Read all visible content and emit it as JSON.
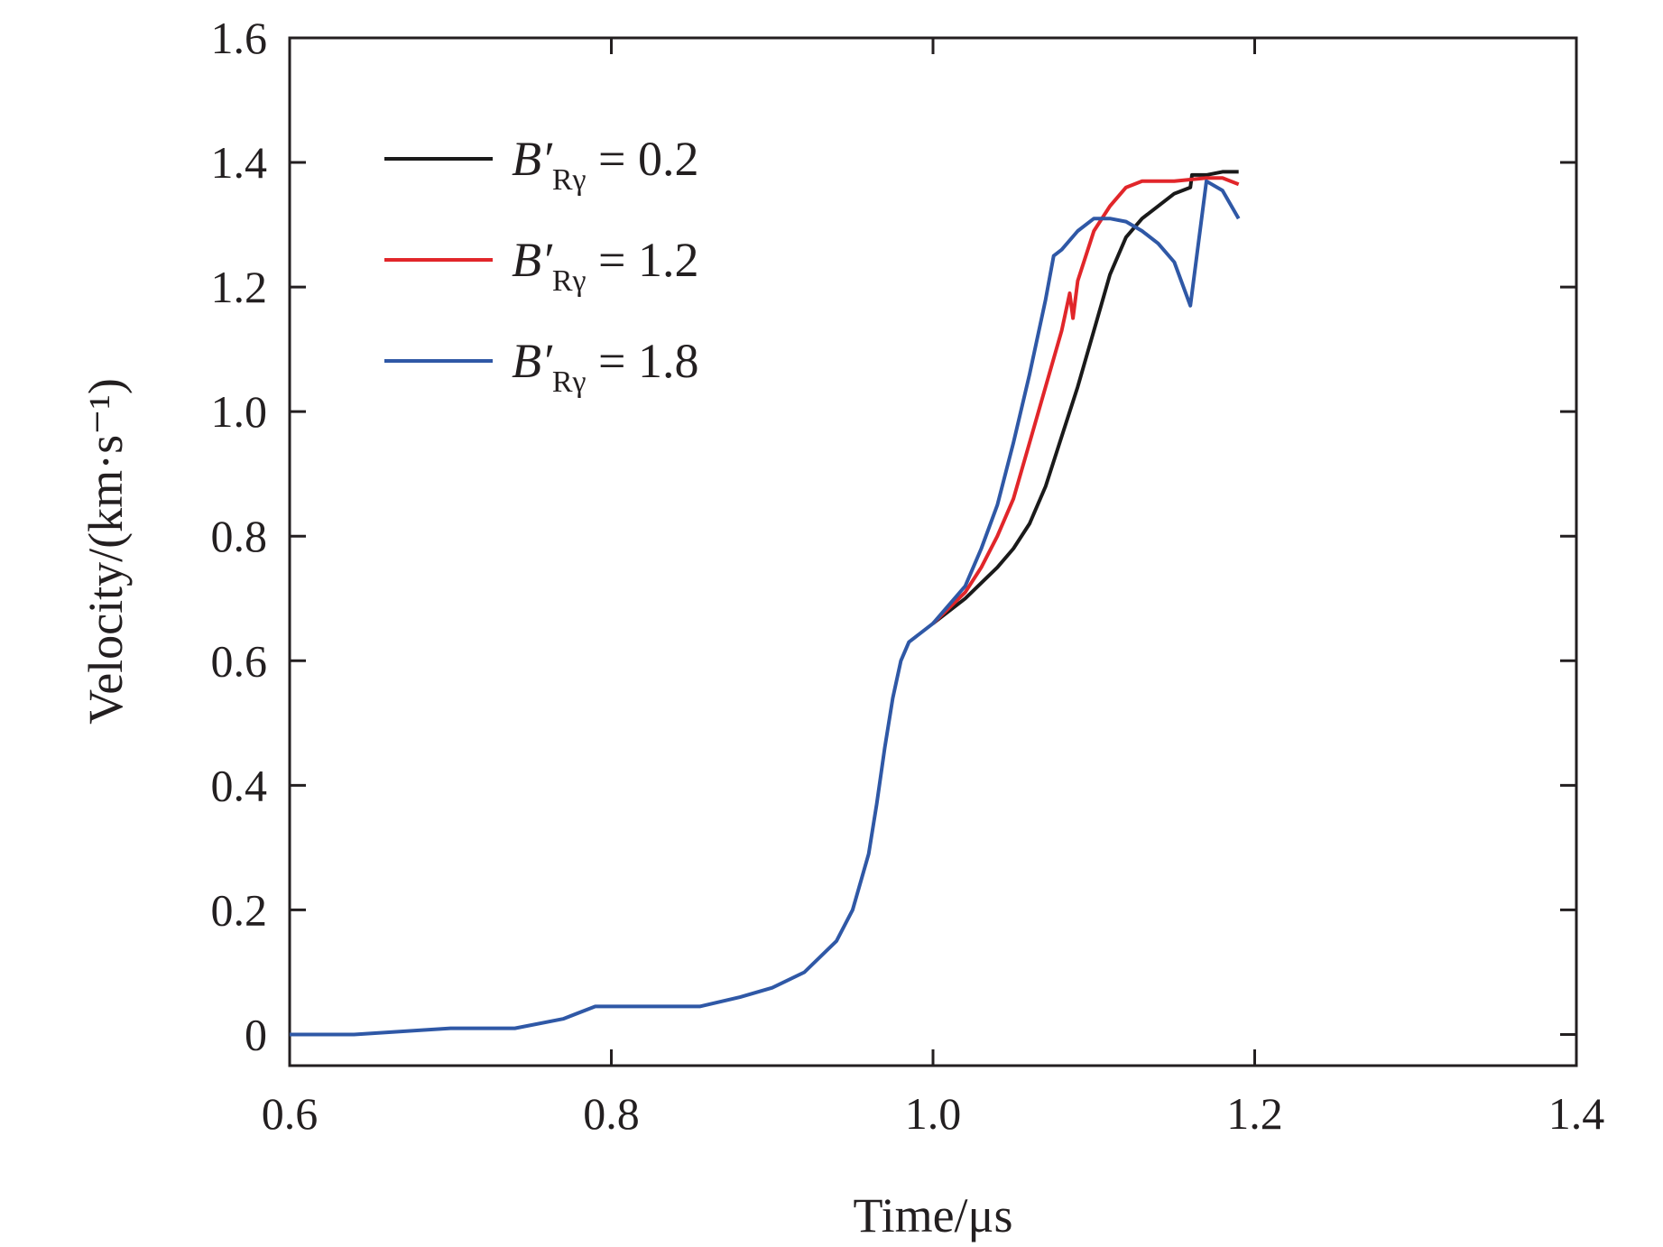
{
  "chart_data": {
    "type": "line",
    "xlabel": "Time/μs",
    "ylabel": "Velocity/(km·s⁻¹)",
    "xlim": [
      0.6,
      1.4
    ],
    "ylim": [
      -0.05,
      1.6
    ],
    "xticks": [
      0.6,
      0.8,
      1.0,
      1.2,
      1.4
    ],
    "xtick_labels": [
      "0.6",
      "0.8",
      "1.0",
      "1.2",
      "1.4"
    ],
    "yticks": [
      0,
      0.2,
      0.4,
      0.6,
      0.8,
      1.0,
      1.2,
      1.4,
      1.6
    ],
    "ytick_labels": [
      "0",
      "0.2",
      "0.4",
      "0.6",
      "0.8",
      "1.0",
      "1.2",
      "1.4",
      "1.6"
    ],
    "grid": false,
    "legend_position": "top-left",
    "series": [
      {
        "name": "B′Rγ = 0.2",
        "legend": {
          "base": "B′",
          "sub": "Rγ",
          "value": " = 0.2"
        },
        "color": "#1a1a1a",
        "x": [
          1.0,
          1.02,
          1.04,
          1.05,
          1.06,
          1.07,
          1.08,
          1.09,
          1.1,
          1.11,
          1.12,
          1.13,
          1.14,
          1.15,
          1.16,
          1.161,
          1.17,
          1.18,
          1.19
        ],
        "y": [
          0.66,
          0.7,
          0.75,
          0.78,
          0.82,
          0.88,
          0.96,
          1.04,
          1.13,
          1.22,
          1.28,
          1.31,
          1.33,
          1.35,
          1.36,
          1.38,
          1.38,
          1.385,
          1.385
        ]
      },
      {
        "name": "B′Rγ = 1.2",
        "legend": {
          "base": "B′",
          "sub": "Rγ",
          "value": " = 1.2"
        },
        "color": "#e1262a",
        "x": [
          1.0,
          1.02,
          1.03,
          1.04,
          1.05,
          1.06,
          1.07,
          1.08,
          1.085,
          1.087,
          1.09,
          1.1,
          1.11,
          1.12,
          1.13,
          1.15,
          1.17,
          1.18,
          1.19
        ],
        "y": [
          0.66,
          0.71,
          0.75,
          0.8,
          0.86,
          0.95,
          1.04,
          1.13,
          1.19,
          1.15,
          1.21,
          1.29,
          1.33,
          1.36,
          1.37,
          1.37,
          1.375,
          1.375,
          1.365
        ]
      },
      {
        "name": "B′Rγ = 1.8",
        "legend": {
          "base": "B′",
          "sub": "Rγ",
          "value": " = 1.8"
        },
        "color": "#2f58a6",
        "x": [
          0.6,
          0.64,
          0.7,
          0.74,
          0.77,
          0.79,
          0.82,
          0.855,
          0.88,
          0.9,
          0.92,
          0.94,
          0.95,
          0.96,
          0.965,
          0.97,
          0.975,
          0.98,
          0.985,
          0.99,
          1.0,
          1.02,
          1.03,
          1.04,
          1.05,
          1.06,
          1.07,
          1.075,
          1.08,
          1.09,
          1.1,
          1.11,
          1.12,
          1.13,
          1.14,
          1.15,
          1.16,
          1.165,
          1.17,
          1.18,
          1.19
        ],
        "y": [
          0.0,
          0.0,
          0.01,
          0.01,
          0.025,
          0.045,
          0.045,
          0.045,
          0.06,
          0.075,
          0.1,
          0.15,
          0.2,
          0.29,
          0.37,
          0.46,
          0.54,
          0.6,
          0.63,
          0.64,
          0.66,
          0.72,
          0.78,
          0.85,
          0.95,
          1.06,
          1.18,
          1.25,
          1.26,
          1.29,
          1.31,
          1.31,
          1.305,
          1.29,
          1.27,
          1.24,
          1.17,
          1.27,
          1.37,
          1.355,
          1.31
        ]
      }
    ]
  }
}
